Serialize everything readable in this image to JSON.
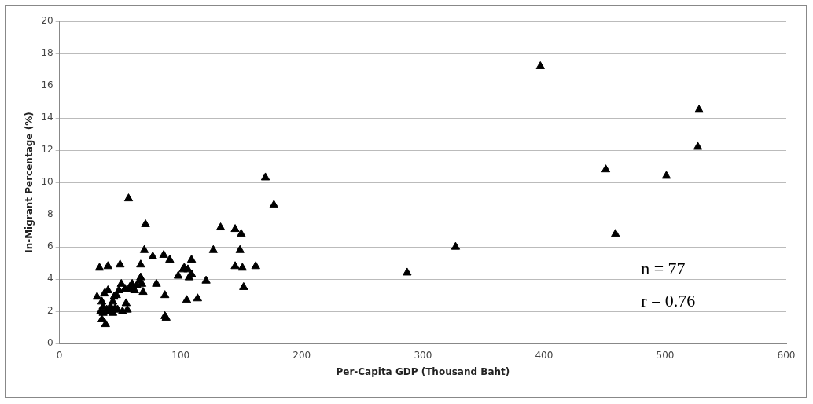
{
  "chart_data": {
    "type": "scatter",
    "xlabel": "Per-Capita GDP (Thousand Baht)",
    "ylabel": "In-Migrant Percentage (%)",
    "annotations": [
      "n = 77",
      "r = 0.76"
    ],
    "xlim": [
      0,
      600
    ],
    "xticks": [
      0,
      100,
      200,
      300,
      400,
      500,
      600
    ],
    "ylim": [
      0,
      20
    ],
    "yticks": [
      0,
      2,
      4,
      6,
      8,
      10,
      12,
      14,
      16,
      18,
      20
    ],
    "grid": "y",
    "legend": false,
    "marker": "triangle",
    "series": [
      {
        "color": "#000000",
        "x": [
          31,
          33,
          34,
          35,
          35,
          36,
          36,
          37,
          38,
          39,
          40,
          40,
          41,
          42,
          43,
          44,
          44,
          45,
          46,
          47,
          48,
          49,
          50,
          51,
          52,
          54,
          55,
          56,
          57,
          58,
          60,
          60,
          62,
          64,
          66,
          67,
          67,
          68,
          69,
          70,
          71,
          77,
          80,
          86,
          87,
          87,
          88,
          91,
          98,
          102,
          103,
          105,
          106,
          107,
          109,
          109,
          114,
          121,
          127,
          133,
          145,
          145,
          149,
          150,
          151,
          152,
          162,
          170,
          177,
          287,
          327,
          397,
          451,
          459,
          501,
          527,
          528
        ],
        "values": [
          2.9,
          4.7,
          2.0,
          2.6,
          1.5,
          1.9,
          2.3,
          3.1,
          1.2,
          2.1,
          4.8,
          3.3,
          2.0,
          2.3,
          2.1,
          2.6,
          1.9,
          2.9,
          2.2,
          3.0,
          2.1,
          3.3,
          4.9,
          3.7,
          2.0,
          3.4,
          2.5,
          2.1,
          9.0,
          3.5,
          3.7,
          3.4,
          3.3,
          3.6,
          3.9,
          4.1,
          4.9,
          3.7,
          3.2,
          5.8,
          7.4,
          5.4,
          3.7,
          5.5,
          3.0,
          1.7,
          1.6,
          5.2,
          4.2,
          4.6,
          4.7,
          2.7,
          4.6,
          4.1,
          5.2,
          4.3,
          2.8,
          3.9,
          5.8,
          7.2,
          7.1,
          4.8,
          5.8,
          6.8,
          4.7,
          3.5,
          4.8,
          10.3,
          8.6,
          4.4,
          6.0,
          17.2,
          10.8,
          6.8,
          10.4,
          12.2,
          14.5
        ]
      }
    ]
  }
}
